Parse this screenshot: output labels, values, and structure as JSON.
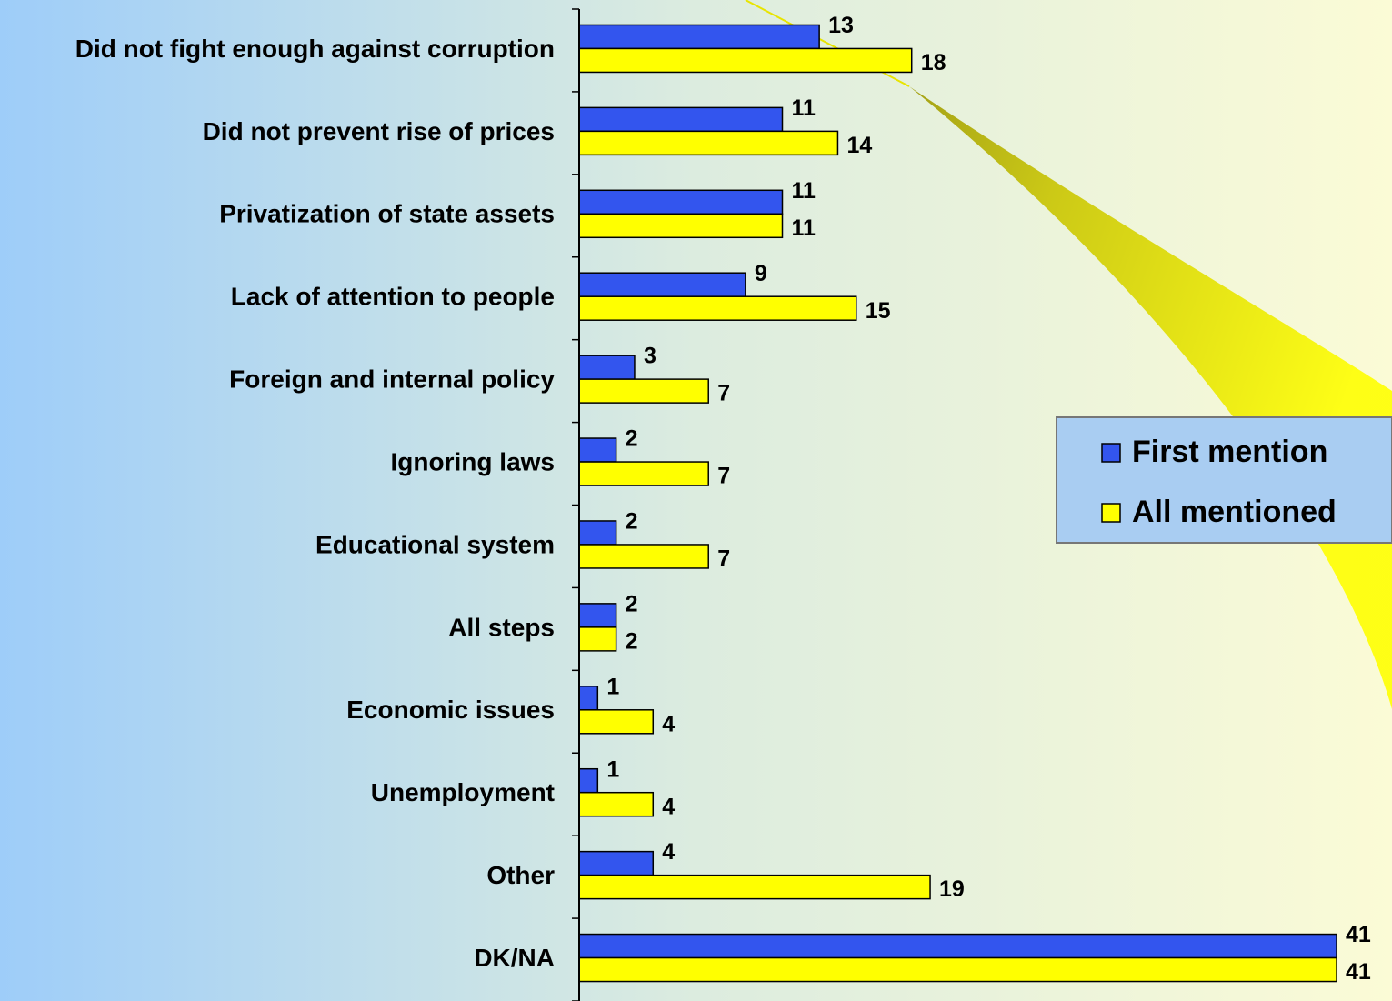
{
  "chart_data": {
    "type": "hbar",
    "categories": [
      "Did not fight enough against corruption",
      "Did not prevent rise of prices",
      "Privatization of state assets",
      "Lack of attention to people",
      "Foreign and internal policy",
      "Ignoring laws",
      "Educational system",
      "All steps",
      "Economic issues",
      "Unemployment",
      "Other",
      "DK/NA"
    ],
    "series": [
      {
        "name": "First mention",
        "color": "#3355ee",
        "values": [
          13,
          11,
          11,
          9,
          3,
          2,
          2,
          2,
          1,
          1,
          4,
          41
        ]
      },
      {
        "name": "All mentioned",
        "color": "#ffff00",
        "values": [
          18,
          14,
          11,
          15,
          7,
          7,
          7,
          2,
          4,
          4,
          19,
          41
        ]
      }
    ],
    "xlim": [
      0,
      44
    ],
    "legend": "right"
  }
}
